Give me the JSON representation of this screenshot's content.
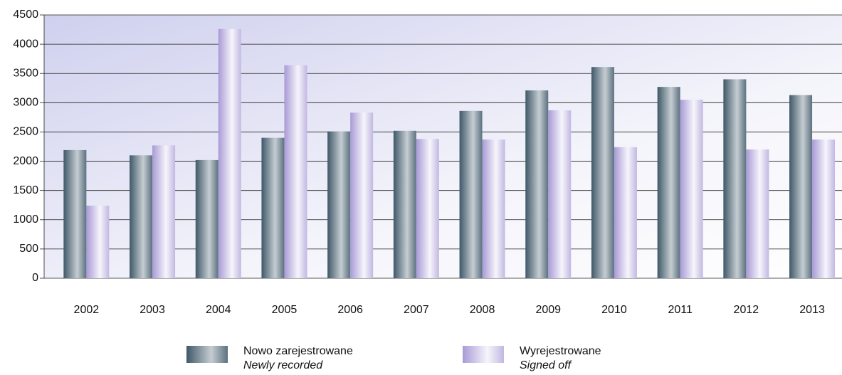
{
  "chart_data": {
    "type": "bar",
    "categories": [
      "2002",
      "2003",
      "2004",
      "2005",
      "2006",
      "2007",
      "2008",
      "2009",
      "2010",
      "2011",
      "2012",
      "2013"
    ],
    "series": [
      {
        "name": "Nowo zarejestrowane",
        "subname": "Newly recorded",
        "color": "#3f5868",
        "values": [
          2190,
          2100,
          2020,
          2400,
          2510,
          2520,
          2860,
          3210,
          3610,
          3270,
          3400,
          3130
        ]
      },
      {
        "name": "Wyrejestrowane",
        "subname": "Signed off",
        "color": "#a89ad6",
        "values": [
          1240,
          2270,
          4260,
          3640,
          2830,
          2380,
          2370,
          2870,
          2240,
          3050,
          2200,
          2370
        ]
      }
    ],
    "ylim": [
      0,
      4500
    ],
    "yticks": [
      0,
      500,
      1000,
      1500,
      2000,
      2500,
      3000,
      3500,
      4000,
      4500
    ],
    "grid": true
  }
}
